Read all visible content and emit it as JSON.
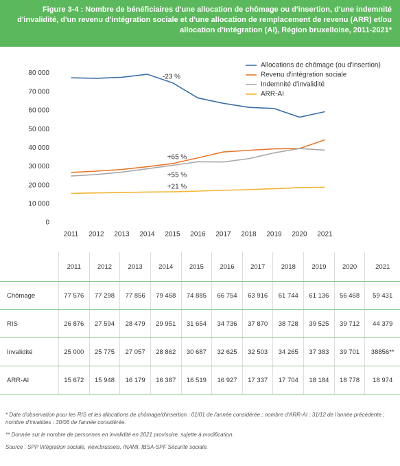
{
  "header": {
    "title": "Figure 3-4 : Nombre de bénéficiaires d'une allocation de chômage ou d'insertion, d'une indemnité d'invalidité, d'un revenu d'intégration sociale et d'une allocation de remplacement de revenu (ARR) et/ou allocation d'intégration (AI), Région bruxelloise, 2011-2021*"
  },
  "chart_data": {
    "type": "line",
    "categories": [
      "2011",
      "2012",
      "2013",
      "2014",
      "2015",
      "2016",
      "2017",
      "2018",
      "2019",
      "2020",
      "2021"
    ],
    "series": [
      {
        "name": "Allocations de chômage (ou d'insertion)",
        "color": "#3d6fa8",
        "values": [
          77576,
          77298,
          77856,
          79468,
          74885,
          66754,
          63916,
          61744,
          61136,
          56468,
          59431
        ],
        "value_labels": [
          "77 576",
          "77 298",
          "77 856",
          "79 468",
          "74 885",
          "66 754",
          "63 916",
          "61 744",
          "61 136",
          "56 468",
          "59 431"
        ]
      },
      {
        "name": "Revenu d'intégration sociale",
        "color": "#e8782c",
        "values": [
          26876,
          27594,
          28479,
          29951,
          31654,
          34736,
          37870,
          38728,
          39525,
          39712,
          44379
        ],
        "value_labels": [
          "26 876",
          "27 594",
          "28 479",
          "29 951",
          "31 654",
          "34 736",
          "37 870",
          "38 728",
          "39 525",
          "39 712",
          "44 379"
        ]
      },
      {
        "name": "Indemnité d'invalidité",
        "color": "#a8a8a8",
        "values": [
          25000,
          25775,
          27057,
          28862,
          30687,
          32625,
          32503,
          34265,
          37383,
          39701,
          38856
        ],
        "value_labels": [
          "25 000",
          "25 775",
          "27 057",
          "28 862",
          "30 687",
          "32 625",
          "32 503",
          "34 265",
          "37 383",
          "39 701",
          "38856**"
        ]
      },
      {
        "name": "ARR-AI",
        "color": "#f2b534",
        "values": [
          15672,
          15948,
          16179,
          16387,
          16519,
          16927,
          17337,
          17704,
          18184,
          18778,
          18974
        ],
        "value_labels": [
          "15 672",
          "15 948",
          "16 179",
          "16 387",
          "16 519",
          "16 927",
          "17 337",
          "17 704",
          "18 184",
          "18 778",
          "18 974"
        ]
      }
    ],
    "annotations": [
      {
        "text": "-23 %",
        "color": "#3d6fa8"
      },
      {
        "text": "+65 %",
        "color": "#e8782c"
      },
      {
        "text": "+55 %",
        "color": "#a8a8a8"
      },
      {
        "text": "+21 %",
        "color": "#f2b534"
      }
    ],
    "ylim": [
      0,
      85000
    ],
    "yticks": [
      0,
      {
        "value": 10000,
        "label": "10 000"
      },
      {
        "value": 20000,
        "label": "20 000"
      },
      {
        "value": 30000,
        "label": "30 000"
      },
      {
        "value": 40000,
        "label": "40 000"
      },
      {
        "value": 50000,
        "label": "50 000"
      },
      {
        "value": 60000,
        "label": "60 000"
      },
      {
        "value": 70000,
        "label": "70 000"
      },
      {
        "value": 80000,
        "label": "80 000"
      }
    ],
    "grid": false,
    "legend": "top-right"
  },
  "table": {
    "row_labels": [
      "Chômage",
      "RIS",
      "Invalidité",
      "ARR-AI"
    ]
  },
  "notes": [
    "* Date d'observation pour les RIS et les allocations de chômage/d'insertion : 01/01 de l'année considérée ; nombre d'ARR-AI : 31/12 de l'année précédente ; nombre d'invalides : 30/06 de l'année considérée.",
    "** Donnée sur le nombre de personnes en invalidité en 2021 provisoire, sujette à modification.",
    "Source : SPP Intégration sociale, view.brussels, INAMI, IBSA-SPF Sécurité sociale."
  ]
}
